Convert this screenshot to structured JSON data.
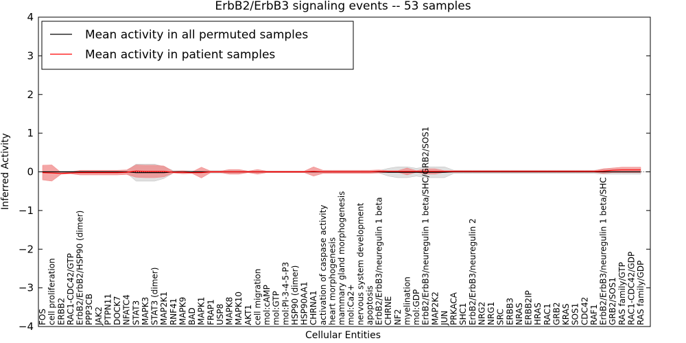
{
  "chart_data": {
    "type": "line",
    "title": "ErbB2/ErbB3 signaling events -- 53 samples",
    "xlabel": "Cellular Entities",
    "ylabel": "Inferred Activity",
    "ylim": [
      -4,
      4
    ],
    "yticks": [
      "-4",
      "-3",
      "-2",
      "-1",
      "0",
      "1",
      "2",
      "3",
      "4"
    ],
    "legend_position": "top-left",
    "grid": false,
    "categories": [
      "FOS",
      "cell proliferation",
      "ERBB2",
      "RAC1-CDC42/GTP",
      "ErbB2/ErbB2/HSP90 (dimer)",
      "PPP3CB",
      "JAK2",
      "PTPN11",
      "DOCK7",
      "NFATC4",
      "STAT3",
      "MAPK3",
      "STAT3 (dimer)",
      "MAP2K1",
      "RNF41",
      "MAPK9",
      "BAD",
      "MAPK1",
      "FRAP1",
      "USP8",
      "MAPK8",
      "MAPK10",
      "AKT1",
      "cell migration",
      "mol:cAMP",
      "mol:GTP",
      "mol:PI-3-4-5-P3",
      "HSP90 (dimer)",
      "HSP90AA1",
      "CHRNA1",
      "activation of caspase activity",
      "heart morphogenesis",
      "mammary gland morphogenesis",
      "mol:Ca2+",
      "nervous system development",
      "apoptosis",
      "ErbB2/ErbB3/neuregulin 1 beta",
      "CHRNE",
      "NF2",
      "myelination",
      "mol:GDP",
      "ErbB2/ErbB3/neuregulin 1 beta/SHC/GRB2/SOS1",
      "MAP2K2",
      "JUN",
      "PRKACA",
      "SHC1",
      "ErbB2/ErbB3/neuregulin 2",
      "NRG2",
      "NRG1",
      "SRC",
      "ERBB3",
      "NRAS",
      "ERBB2IP",
      "HRAS",
      "RAC1",
      "GRB2",
      "KRAS",
      "SOS1",
      "CDC42",
      "RAF1",
      "ErbB2/ErbB3/neuregulin 1 beta/SHC",
      "GRB2/SOS1",
      "RAS family/GTP",
      "RAC1-CDC42/GDP",
      "RAS family/GDP"
    ],
    "series": [
      {
        "name": "Mean activity in all permuted samples",
        "color": "#000000",
        "band_color": "#bbbbbb",
        "values": [
          0,
          0,
          0,
          0,
          0,
          0,
          0,
          0,
          0,
          0,
          -0.02,
          -0.02,
          -0.02,
          -0.02,
          0,
          0,
          0,
          0,
          0,
          0,
          0,
          0,
          0,
          0,
          0,
          0,
          0,
          0,
          0,
          0,
          0,
          0,
          0,
          0,
          0,
          0,
          0,
          -0.01,
          -0.01,
          -0.01,
          -0.01,
          -0.01,
          -0.01,
          -0.01,
          0,
          0,
          0,
          0,
          0,
          0,
          0,
          0,
          0,
          0,
          0,
          0,
          0,
          0,
          0,
          0,
          0,
          0,
          0,
          0,
          0
        ],
        "band": [
          0.02,
          0.02,
          0.02,
          0.02,
          0.03,
          0.03,
          0.03,
          0.03,
          0.03,
          0.03,
          0.22,
          0.22,
          0.22,
          0.15,
          0.03,
          0.03,
          0.03,
          0.03,
          0.03,
          0.03,
          0.03,
          0.03,
          0.02,
          0.02,
          0.02,
          0.02,
          0.02,
          0.02,
          0.02,
          0.02,
          0.02,
          0.02,
          0.02,
          0.02,
          0.02,
          0.02,
          0.03,
          0.1,
          0.14,
          0.14,
          0.1,
          0.14,
          0.14,
          0.14,
          0.04,
          0.04,
          0.04,
          0.04,
          0.04,
          0.04,
          0.04,
          0.04,
          0.04,
          0.04,
          0.04,
          0.04,
          0.04,
          0.04,
          0.04,
          0.04,
          0.06,
          0.06,
          0.06,
          0.06,
          0.06
        ]
      },
      {
        "name": "Mean activity in patient samples",
        "color": "#ff0000",
        "band_color": "#f08080",
        "values": [
          -0.02,
          -0.03,
          -0.04,
          -0.03,
          -0.02,
          -0.02,
          -0.02,
          -0.02,
          -0.02,
          -0.01,
          0.02,
          0.01,
          0.01,
          0.01,
          -0.01,
          -0.01,
          -0.02,
          -0.02,
          0,
          0,
          0,
          0,
          0,
          0,
          0,
          0,
          0,
          0,
          0,
          0.01,
          0,
          0,
          0,
          0,
          0,
          0,
          0.01,
          0.01,
          0.01,
          0.01,
          0.01,
          0.01,
          0.01,
          0.01,
          0.01,
          0.01,
          0.01,
          0.01,
          0.01,
          0.01,
          0.01,
          0.01,
          0.01,
          0.01,
          0.01,
          0.01,
          0.01,
          0.01,
          0.01,
          0.01,
          0.02,
          0.04,
          0.05,
          0.05,
          0.05
        ],
        "band": [
          0.19,
          0.21,
          0.02,
          0.02,
          0.06,
          0.06,
          0.06,
          0.06,
          0.06,
          0.06,
          0.16,
          0.16,
          0.16,
          0.14,
          0.02,
          0.04,
          0.02,
          0.14,
          0.02,
          0.02,
          0.06,
          0.06,
          0.02,
          0.06,
          0.02,
          0.02,
          0.02,
          0.02,
          0.02,
          0.12,
          0.04,
          0.04,
          0.04,
          0.04,
          0.04,
          0.04,
          0.04,
          0.02,
          0.02,
          0.09,
          0.02,
          0.07,
          0.07,
          0.02,
          0.02,
          0.02,
          0.02,
          0.02,
          0.02,
          0.02,
          0.02,
          0.02,
          0.02,
          0.02,
          0.02,
          0.02,
          0.02,
          0.02,
          0.02,
          0.02,
          0.06,
          0.06,
          0.07,
          0.07,
          0.07
        ]
      }
    ]
  }
}
